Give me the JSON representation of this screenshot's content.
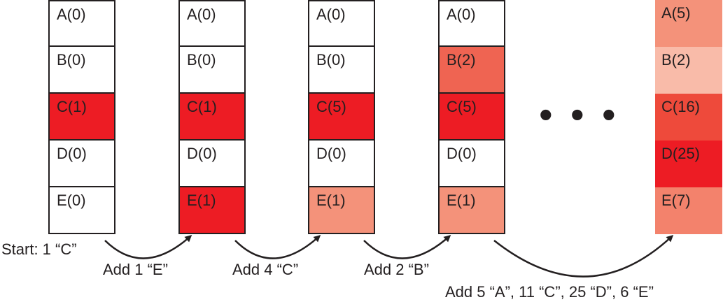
{
  "columns": [
    {
      "cells": [
        {
          "label": "A(0)",
          "color": "#ffffff"
        },
        {
          "label": "B(0)",
          "color": "#ffffff"
        },
        {
          "label": "C(1)",
          "color": "#ed1c24"
        },
        {
          "label": "D(0)",
          "color": "#ffffff"
        },
        {
          "label": "E(0)",
          "color": "#ffffff"
        }
      ]
    },
    {
      "cells": [
        {
          "label": "A(0)",
          "color": "#ffffff"
        },
        {
          "label": "B(0)",
          "color": "#ffffff"
        },
        {
          "label": "C(1)",
          "color": "#ed1c24"
        },
        {
          "label": "D(0)",
          "color": "#ffffff"
        },
        {
          "label": "E(1)",
          "color": "#ed1c24"
        }
      ]
    },
    {
      "cells": [
        {
          "label": "A(0)",
          "color": "#ffffff"
        },
        {
          "label": "B(0)",
          "color": "#ffffff"
        },
        {
          "label": "C(5)",
          "color": "#ed1c24"
        },
        {
          "label": "D(0)",
          "color": "#ffffff"
        },
        {
          "label": "E(1)",
          "color": "#f4927a"
        }
      ]
    },
    {
      "cells": [
        {
          "label": "A(0)",
          "color": "#ffffff"
        },
        {
          "label": "B(2)",
          "color": "#ef6452"
        },
        {
          "label": "C(5)",
          "color": "#ed1c24"
        },
        {
          "label": "D(0)",
          "color": "#ffffff"
        },
        {
          "label": "E(1)",
          "color": "#f4927a"
        }
      ]
    },
    {
      "cells": [
        {
          "label": "A(5)",
          "color": "#f4927a"
        },
        {
          "label": "B(2)",
          "color": "#f9bba9"
        },
        {
          "label": "C(16)",
          "color": "#ee4a3b"
        },
        {
          "label": "D(25)",
          "color": "#ed1c24"
        },
        {
          "label": "E(7)",
          "color": "#f3826c"
        }
      ]
    }
  ],
  "ellipsis_symbol": "•",
  "labels": {
    "start": "Start: 1 “C”",
    "step1": "Add 1 “E”",
    "step2": "Add 4 “C”",
    "step3": "Add 2 “B”",
    "step4": "Add 5 “A”, 11 “C”, 25 “D”, 6 “E”"
  }
}
